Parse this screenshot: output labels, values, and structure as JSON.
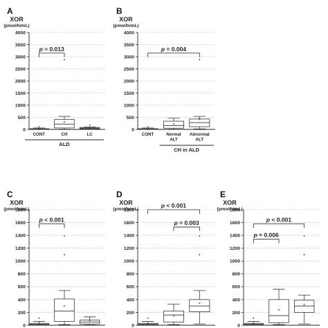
{
  "chart_data": [
    {
      "type": "box",
      "panel": "A",
      "ylabel": "XOR",
      "yunit": "(pmol/h/mL)",
      "ylim": [
        0,
        4000
      ],
      "yticks": [
        0,
        500,
        1000,
        1500,
        2000,
        2500,
        3000,
        3500,
        4000
      ],
      "grid": "horizontal-dotted",
      "categories": [
        "CONT",
        "CH",
        "LC"
      ],
      "group_label": "ALD",
      "group_span": [
        0,
        2
      ],
      "boxes": [
        {
          "min": 0,
          "q1": 5,
          "median": 15,
          "q3": 30,
          "max": 60,
          "mean": 20,
          "outliers": [
            110
          ]
        },
        {
          "min": 10,
          "q1": 60,
          "median": 220,
          "q3": 410,
          "max": 540,
          "mean": 300,
          "outliers": [
            2880
          ]
        },
        {
          "min": 5,
          "q1": 20,
          "median": 50,
          "q3": 80,
          "max": 100,
          "mean": 60,
          "outliers": [
            180
          ]
        }
      ],
      "brackets": [
        {
          "from": 0,
          "to": 1,
          "y": 3150,
          "text": "= 0.013"
        }
      ]
    },
    {
      "type": "box",
      "panel": "B",
      "ylabel": "XOR",
      "yunit": "(pmol/h/mL)",
      "ylim": [
        0,
        4000
      ],
      "yticks": [
        0,
        500,
        1000,
        1500,
        2000,
        2500,
        3000,
        3500,
        4000
      ],
      "grid": "horizontal-dotted",
      "categories": [
        "CONT",
        "Normal\nALT",
        "Abnormal\nALT"
      ],
      "group_label": "CH in ALD",
      "group_span": [
        1,
        2
      ],
      "boxes": [
        {
          "min": 0,
          "q1": 5,
          "median": 15,
          "q3": 30,
          "max": 60,
          "mean": 20,
          "outliers": [
            110
          ]
        },
        {
          "min": 10,
          "q1": 50,
          "median": 160,
          "q3": 340,
          "max": 460,
          "mean": 220,
          "outliers": []
        },
        {
          "min": 20,
          "q1": 110,
          "median": 280,
          "q3": 430,
          "max": 540,
          "mean": 420,
          "outliers": [
            2880
          ]
        }
      ],
      "brackets": [
        {
          "from": 0,
          "to": 2,
          "y": 3150,
          "text": "= 0.004"
        }
      ]
    },
    {
      "type": "box",
      "panel": "C",
      "ylabel": "XOR",
      "yunit": "(pmol/h/mL)",
      "ylim": [
        0,
        1800
      ],
      "yticks": [
        0,
        200,
        400,
        600,
        800,
        1000,
        1200,
        1400,
        1600,
        1800
      ],
      "grid": "horizontal-dotted",
      "categories": [
        "CONT",
        "CH",
        "LC"
      ],
      "group_label": "",
      "group_span": [
        0,
        2
      ],
      "boxes": [
        {
          "min": 0,
          "q1": 5,
          "median": 15,
          "q3": 30,
          "max": 60,
          "mean": 20,
          "outliers": [
            110
          ]
        },
        {
          "min": 10,
          "q1": 60,
          "median": 220,
          "q3": 410,
          "max": 540,
          "mean": 300,
          "outliers": [
            1100,
            1390
          ]
        },
        {
          "min": 5,
          "q1": 20,
          "median": 50,
          "q3": 80,
          "max": 130,
          "mean": 70,
          "outliers": []
        }
      ],
      "brackets": [
        {
          "from": 0,
          "to": 1,
          "y": 1580,
          "text": "< 0.001"
        }
      ]
    },
    {
      "type": "box",
      "panel": "D",
      "ylabel": "XOR",
      "yunit": "(pmol/h/mL)",
      "ylim": [
        0,
        1800
      ],
      "yticks": [
        0,
        200,
        400,
        600,
        800,
        1000,
        1200,
        1400,
        1600,
        1800
      ],
      "grid": "horizontal-dotted",
      "categories": [
        "CONT",
        "Normal\nALT",
        "Abnormal\nALT"
      ],
      "group_label": "",
      "group_span": [
        1,
        2
      ],
      "boxes": [
        {
          "min": 0,
          "q1": 5,
          "median": 15,
          "q3": 30,
          "max": 60,
          "mean": 20,
          "outliers": [
            110
          ]
        },
        {
          "min": 10,
          "q1": 50,
          "median": 160,
          "q3": 220,
          "max": 330,
          "mean": 150,
          "outliers": []
        },
        {
          "min": 20,
          "q1": 210,
          "median": 300,
          "q3": 400,
          "max": 540,
          "mean": 340,
          "outliers": [
            1100,
            1390
          ]
        }
      ],
      "brackets": [
        {
          "from": 0,
          "to": 2,
          "y": 1800,
          "text": "< 0.001"
        },
        {
          "from": 1,
          "to": 2,
          "y": 1530,
          "text": "= 0.003"
        }
      ]
    },
    {
      "type": "box",
      "panel": "E",
      "ylabel": "XOR",
      "yunit": "(pmol/h/mL)",
      "ylim": [
        0,
        1800
      ],
      "yticks": [
        0,
        200,
        400,
        600,
        800,
        1000,
        1200,
        1400,
        1600,
        1800
      ],
      "grid": "horizontal-dotted",
      "categories": [
        "CONT",
        "Normal\nγGTP",
        "Abnormal\nγGTP"
      ],
      "group_label": "",
      "group_span": [
        1,
        2
      ],
      "boxes": [
        {
          "min": 0,
          "q1": 5,
          "median": 15,
          "q3": 30,
          "max": 60,
          "mean": 20,
          "outliers": [
            110
          ]
        },
        {
          "min": 10,
          "q1": 40,
          "median": 150,
          "q3": 400,
          "max": 560,
          "mean": 240,
          "outliers": []
        },
        {
          "min": 20,
          "q1": 200,
          "median": 300,
          "q3": 390,
          "max": 470,
          "mean": 320,
          "outliers": [
            1100,
            1390
          ]
        }
      ],
      "brackets": [
        {
          "from": 0,
          "to": 2,
          "y": 1580,
          "text": "< 0.001"
        },
        {
          "from": 0,
          "to": 1,
          "y": 1340,
          "text": "= 0.006"
        }
      ]
    }
  ]
}
